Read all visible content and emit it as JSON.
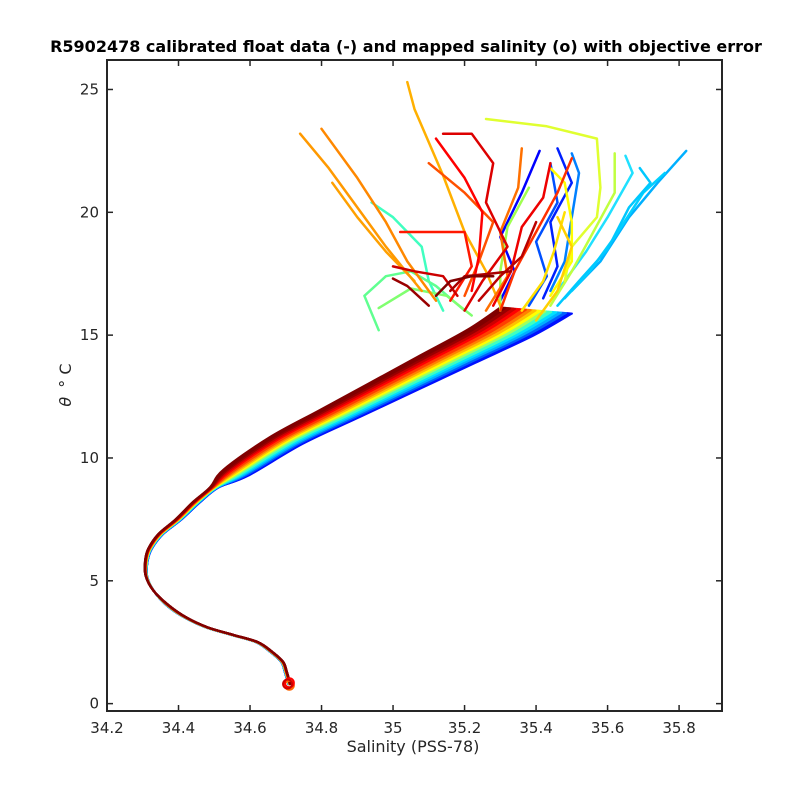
{
  "chart_data": {
    "type": "line",
    "title": "R5902478 calibrated float data (-) and mapped salinity (o) with objective error",
    "xlabel": "Salinity (PSS-78)",
    "ylabel_symbol": "θ",
    "ylabel_unit": "° C",
    "xlim": [
      34.2,
      35.92
    ],
    "ylim": [
      -0.3,
      26.2
    ],
    "x_ticks": [
      34.2,
      34.4,
      34.6,
      34.8,
      35,
      35.2,
      35.4,
      35.6,
      35.8
    ],
    "x_tick_labels": [
      "34.2",
      "34.4",
      "34.6",
      "34.8",
      "35",
      "35.2",
      "35.4",
      "35.6",
      "35.8"
    ],
    "y_ticks": [
      0,
      5,
      10,
      15,
      20,
      25
    ],
    "y_tick_labels": [
      "0",
      "5",
      "10",
      "15",
      "20",
      "25"
    ],
    "grid": false,
    "legend": "none",
    "colormap": "jet",
    "deep_profile": {
      "x": [
        34.71,
        34.7,
        34.69,
        34.66,
        34.62,
        34.55,
        34.48,
        34.42,
        34.37,
        34.33,
        34.31,
        34.31,
        34.32,
        34.35,
        34.4,
        34.45,
        34.5,
        34.56
      ],
      "y": [
        0.8,
        1.3,
        1.7,
        2.1,
        2.5,
        2.8,
        3.1,
        3.5,
        4.0,
        4.6,
        5.2,
        5.8,
        6.3,
        6.9,
        7.5,
        8.2,
        8.8,
        9.4
      ]
    },
    "upper_mean": {
      "x": [
        34.56,
        34.7,
        34.85,
        35.0,
        35.15,
        35.3,
        35.4
      ],
      "y": [
        9.4,
        10.7,
        11.8,
        12.9,
        14.0,
        15.1,
        16.0
      ]
    },
    "mapped_salinity": [
      {
        "x": 34.71,
        "y": 0.75,
        "color": "#ff6600"
      },
      {
        "x": 34.71,
        "y": 0.85,
        "color": "#ff0000"
      },
      {
        "x": 34.705,
        "y": 0.8,
        "color": "#cc0000"
      }
    ],
    "series": [
      {
        "color": "#0000ff",
        "values": [
          [
            35.3,
            16.4
          ],
          [
            35.34,
            17.6
          ],
          [
            35.3,
            19.0
          ],
          [
            35.36,
            20.8
          ],
          [
            35.41,
            22.5
          ]
        ]
      },
      {
        "color": "#0020ff",
        "values": [
          [
            35.42,
            16.5
          ],
          [
            35.46,
            17.8
          ],
          [
            35.44,
            19.6
          ],
          [
            35.5,
            21.2
          ],
          [
            35.46,
            22.6
          ]
        ]
      },
      {
        "color": "#0050ff",
        "values": [
          [
            35.38,
            16.2
          ],
          [
            35.43,
            17.4
          ],
          [
            35.4,
            18.8
          ],
          [
            35.46,
            20.4
          ],
          [
            35.44,
            22.0
          ]
        ]
      },
      {
        "color": "#0080ff",
        "values": [
          [
            35.44,
            16.8
          ],
          [
            35.48,
            18.0
          ],
          [
            35.5,
            19.8
          ],
          [
            35.52,
            21.6
          ],
          [
            35.5,
            22.4
          ]
        ]
      },
      {
        "color": "#00b0ff",
        "values": [
          [
            35.5,
            16.8
          ],
          [
            35.58,
            18.0
          ],
          [
            35.66,
            19.8
          ],
          [
            35.74,
            21.2
          ],
          [
            35.82,
            22.5
          ]
        ]
      },
      {
        "color": "#00d0ff",
        "values": [
          [
            35.48,
            16.5
          ],
          [
            35.55,
            17.6
          ],
          [
            35.62,
            19.0
          ],
          [
            35.7,
            20.8
          ],
          [
            35.76,
            21.6
          ]
        ]
      },
      {
        "color": "#00c8ff",
        "values": [
          [
            35.46,
            16.2
          ],
          [
            35.52,
            17.2
          ],
          [
            35.6,
            18.5
          ],
          [
            35.66,
            20.2
          ],
          [
            35.72,
            21.2
          ],
          [
            35.69,
            21.8
          ]
        ]
      },
      {
        "color": "#20e0ff",
        "values": [
          [
            35.46,
            16.8
          ],
          [
            35.54,
            18.4
          ],
          [
            35.6,
            19.8
          ],
          [
            35.67,
            21.6
          ],
          [
            35.65,
            22.3
          ]
        ]
      },
      {
        "color": "#40ffc0",
        "values": [
          [
            35.14,
            16.0
          ],
          [
            35.1,
            17.2
          ],
          [
            35.08,
            18.6
          ],
          [
            35.0,
            19.8
          ],
          [
            34.94,
            20.4
          ]
        ]
      },
      {
        "color": "#60ff90",
        "values": [
          [
            35.2,
            16.0
          ],
          [
            35.12,
            17.0
          ],
          [
            35.05,
            17.6
          ],
          [
            34.98,
            17.4
          ],
          [
            34.92,
            16.6
          ],
          [
            34.96,
            15.2
          ]
        ]
      },
      {
        "color": "#80ff70",
        "values": [
          [
            35.22,
            15.8
          ],
          [
            35.15,
            16.6
          ],
          [
            35.05,
            16.9
          ],
          [
            34.96,
            16.1
          ]
        ]
      },
      {
        "color": "#a0ff50",
        "values": [
          [
            35.3,
            16.0
          ],
          [
            35.3,
            17.6
          ],
          [
            35.32,
            19.4
          ],
          [
            35.38,
            21.0
          ]
        ]
      },
      {
        "color": "#c0ff40",
        "values": [
          [
            35.44,
            16.2
          ],
          [
            35.5,
            17.6
          ],
          [
            35.56,
            19.2
          ],
          [
            35.62,
            20.8
          ],
          [
            35.62,
            22.4
          ]
        ]
      },
      {
        "color": "#e0ff30",
        "values": [
          [
            35.48,
            17.2
          ],
          [
            35.5,
            18.6
          ],
          [
            35.57,
            19.8
          ],
          [
            35.58,
            21.0
          ],
          [
            35.57,
            23.0
          ],
          [
            35.43,
            23.5
          ],
          [
            35.26,
            23.8
          ]
        ]
      },
      {
        "color": "#ffff00",
        "values": [
          [
            35.44,
            16.6
          ],
          [
            35.5,
            18.0
          ],
          [
            35.5,
            19.6
          ],
          [
            35.48,
            21.2
          ],
          [
            35.44,
            21.8
          ]
        ]
      },
      {
        "color": "#ffe000",
        "values": [
          [
            35.36,
            16.0
          ],
          [
            35.42,
            17.2
          ],
          [
            35.45,
            18.4
          ],
          [
            35.48,
            20.0
          ]
        ]
      },
      {
        "color": "#ffd000",
        "values": [
          [
            35.4,
            15.6
          ],
          [
            35.46,
            16.8
          ],
          [
            35.5,
            18.6
          ],
          [
            35.46,
            19.8
          ]
        ]
      },
      {
        "color": "#ffb000",
        "values": [
          [
            35.3,
            16.2
          ],
          [
            35.26,
            17.6
          ],
          [
            35.2,
            19.2
          ],
          [
            35.14,
            21.5
          ],
          [
            35.06,
            24.2
          ],
          [
            35.04,
            25.3
          ]
        ]
      },
      {
        "color": "#ffa000",
        "values": [
          [
            35.06,
            17.2
          ],
          [
            34.98,
            18.4
          ],
          [
            34.9,
            19.8
          ],
          [
            34.83,
            21.2
          ]
        ]
      },
      {
        "color": "#ff9900",
        "values": [
          [
            35.08,
            16.8
          ],
          [
            34.98,
            18.6
          ],
          [
            34.9,
            20.2
          ],
          [
            34.82,
            21.8
          ],
          [
            34.74,
            23.2
          ]
        ]
      },
      {
        "color": "#ff8800",
        "values": [
          [
            35.12,
            16.4
          ],
          [
            35.04,
            18.0
          ],
          [
            34.98,
            19.6
          ],
          [
            34.9,
            21.4
          ],
          [
            34.8,
            23.4
          ]
        ]
      },
      {
        "color": "#ff7000",
        "values": [
          [
            35.26,
            16.0
          ],
          [
            35.32,
            17.4
          ],
          [
            35.3,
            19.2
          ],
          [
            35.35,
            21.0
          ],
          [
            35.36,
            22.6
          ]
        ]
      },
      {
        "color": "#ff5000",
        "values": [
          [
            35.2,
            16.6
          ],
          [
            35.24,
            18.0
          ],
          [
            35.28,
            19.6
          ],
          [
            35.2,
            20.8
          ],
          [
            35.1,
            22.0
          ]
        ]
      },
      {
        "color": "#ff3000",
        "values": [
          [
            35.3,
            16.0
          ],
          [
            35.34,
            17.6
          ],
          [
            35.4,
            19.2
          ],
          [
            35.46,
            20.8
          ],
          [
            35.5,
            22.2
          ]
        ]
      },
      {
        "color": "#ff1800",
        "values": [
          [
            35.16,
            16.4
          ],
          [
            35.22,
            17.8
          ],
          [
            35.2,
            19.2
          ],
          [
            35.02,
            19.2
          ]
        ]
      },
      {
        "color": "#ff0000",
        "values": [
          [
            35.22,
            16.8
          ],
          [
            35.24,
            18.2
          ],
          [
            35.25,
            20.0
          ],
          [
            35.2,
            21.4
          ],
          [
            35.12,
            23.0
          ]
        ]
      },
      {
        "color": "#ee0000",
        "values": [
          [
            35.28,
            16.2
          ],
          [
            35.33,
            17.6
          ],
          [
            35.36,
            19.4
          ],
          [
            35.42,
            20.6
          ],
          [
            35.44,
            22.0
          ]
        ]
      },
      {
        "color": "#dd0000",
        "values": [
          [
            35.2,
            16.0
          ],
          [
            35.25,
            17.2
          ],
          [
            35.32,
            18.6
          ],
          [
            35.26,
            20.4
          ],
          [
            35.28,
            22.0
          ],
          [
            35.22,
            23.2
          ],
          [
            35.14,
            23.2
          ]
        ]
      },
      {
        "color": "#cc0000",
        "values": [
          [
            35.18,
            16.6
          ],
          [
            35.14,
            17.4
          ],
          [
            35.06,
            17.6
          ],
          [
            35.0,
            17.8
          ]
        ]
      },
      {
        "color": "#bb0000",
        "values": [
          [
            35.24,
            16.4
          ],
          [
            35.3,
            17.4
          ],
          [
            35.36,
            18.2
          ],
          [
            35.4,
            19.6
          ]
        ]
      },
      {
        "color": "#aa0000",
        "values": [
          [
            35.16,
            16.8
          ],
          [
            35.2,
            17.4
          ],
          [
            35.27,
            17.5
          ],
          [
            35.33,
            17.6
          ]
        ]
      },
      {
        "color": "#990000",
        "values": [
          [
            35.1,
            16.2
          ],
          [
            35.04,
            17.0
          ],
          [
            35.0,
            17.3
          ]
        ]
      },
      {
        "color": "#800000",
        "values": [
          [
            35.12,
            16.6
          ],
          [
            35.16,
            17.2
          ],
          [
            35.22,
            17.4
          ],
          [
            35.28,
            17.4
          ]
        ]
      }
    ],
    "bundle_colors": [
      "#0010ff",
      "#0060ff",
      "#00b0ff",
      "#00e0ff",
      "#40ffc0",
      "#a0ff60",
      "#ffff00",
      "#ffc000",
      "#ff8000",
      "#ff4000",
      "#ff0000",
      "#cc0000",
      "#990000",
      "#800000"
    ]
  }
}
